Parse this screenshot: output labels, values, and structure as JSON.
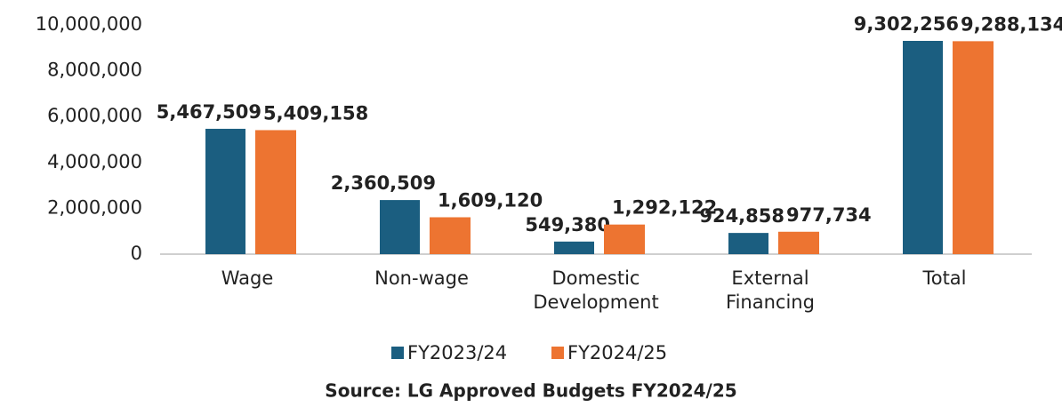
{
  "chart_data": {
    "type": "bar",
    "categories": [
      "Wage",
      "Non-wage",
      "Domestic Development",
      "External Financing",
      "Total"
    ],
    "series": [
      {
        "name": "FY2023/24",
        "color": "#1b5e80",
        "values": [
          5467509,
          2360509,
          549380,
          924858,
          9302256
        ],
        "value_labels": [
          "5,467,509",
          "2,360,509",
          "549,380",
          "924,858",
          "9,302,256"
        ]
      },
      {
        "name": "FY2024/25",
        "color": "#ed7431",
        "values": [
          5409158,
          1609120,
          1292122,
          977734,
          9288134
        ],
        "value_labels": [
          "5,409,158",
          "1,609,120",
          "1,292,122",
          "977,734",
          "9,288,134"
        ]
      }
    ],
    "ylim": [
      0,
      10000000
    ],
    "yticks": [
      0,
      {
        "value": 2000000,
        "label": "2,000,000"
      },
      {
        "value": 4000000,
        "label": "4,000,000"
      },
      {
        "value": 6000000,
        "label": "6,000,000"
      },
      {
        "value": 8000000,
        "label": "8,000,000"
      },
      {
        "value": 10000000,
        "label": "10,000,000"
      }
    ],
    "grid": false,
    "legend": "bottom",
    "source": "Source: LG Approved Budgets FY2024/25"
  }
}
